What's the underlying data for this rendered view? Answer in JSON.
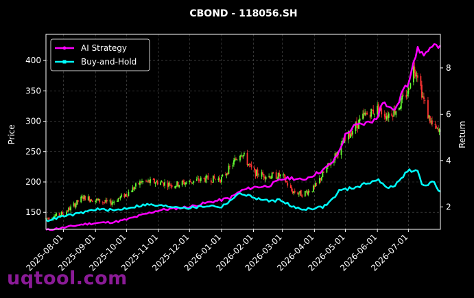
{
  "chart_data": {
    "type": "line",
    "title": "CBOND - 118056.SH",
    "ylabel_left": "Price",
    "ylabel_right": "Return",
    "grid": true,
    "legend_placement": "top-left",
    "x_ticks": [
      "2025-08-01",
      "2025-09-01",
      "2025-10-01",
      "2025-11-01",
      "2025-12-01",
      "2026-01-01",
      "2026-02-01",
      "2026-03-01",
      "2026-04-01",
      "2026-05-01",
      "2026-06-01",
      "2026-07-01"
    ],
    "x_range": [
      "2025-07-15",
      "2026-08-01"
    ],
    "y_left_ticks": [
      150,
      200,
      250,
      300,
      350,
      400
    ],
    "y_left_range": [
      122,
      443
    ],
    "y_right_ticks": [
      2,
      4,
      6,
      8
    ],
    "y_right_range": [
      1.03,
      9.45
    ],
    "colors": {
      "background": "#000000",
      "up_candle": "#66ff33",
      "down_candle": "#ff3333",
      "ai": "#ff00ff",
      "bh": "#00ffff"
    },
    "series": [
      {
        "name": "AI Strategy",
        "axis": "right",
        "color": "#ff00ff",
        "points": [
          [
            "2025-07-15",
            1.0
          ],
          [
            "2025-08-01",
            1.1
          ],
          [
            "2025-08-20",
            1.25
          ],
          [
            "2025-09-01",
            1.3
          ],
          [
            "2025-09-20",
            1.35
          ],
          [
            "2025-10-01",
            1.45
          ],
          [
            "2025-10-20",
            1.7
          ],
          [
            "2025-11-01",
            1.85
          ],
          [
            "2025-11-20",
            1.95
          ],
          [
            "2025-12-01",
            2.0
          ],
          [
            "2025-12-20",
            2.2
          ],
          [
            "2026-01-01",
            2.3
          ],
          [
            "2026-01-10",
            2.4
          ],
          [
            "2026-01-20",
            2.7
          ],
          [
            "2026-02-01",
            2.85
          ],
          [
            "2026-02-15",
            2.9
          ],
          [
            "2026-03-01",
            3.2
          ],
          [
            "2026-03-10",
            3.25
          ],
          [
            "2026-03-20",
            3.15
          ],
          [
            "2026-04-01",
            3.4
          ],
          [
            "2026-04-10",
            3.6
          ],
          [
            "2026-04-20",
            4.0
          ],
          [
            "2026-04-25",
            4.4
          ],
          [
            "2026-05-01",
            5.1
          ],
          [
            "2026-05-10",
            5.5
          ],
          [
            "2026-05-20",
            5.6
          ],
          [
            "2026-06-01",
            5.8
          ],
          [
            "2026-06-05",
            6.6
          ],
          [
            "2026-06-15",
            6.2
          ],
          [
            "2026-06-20",
            6.3
          ],
          [
            "2026-06-25",
            7.0
          ],
          [
            "2026-07-01",
            7.3
          ],
          [
            "2026-07-05",
            8.2
          ],
          [
            "2026-07-10",
            8.8
          ],
          [
            "2026-07-15",
            8.6
          ],
          [
            "2026-07-20",
            8.7
          ],
          [
            "2026-07-25",
            8.9
          ],
          [
            "2026-08-01",
            9.0
          ]
        ]
      },
      {
        "name": "Buy-and-Hold",
        "axis": "right",
        "color": "#00ffff",
        "points": [
          [
            "2025-07-15",
            1.4
          ],
          [
            "2025-08-01",
            1.6
          ],
          [
            "2025-08-15",
            1.7
          ],
          [
            "2025-09-01",
            1.9
          ],
          [
            "2025-09-20",
            1.85
          ],
          [
            "2025-10-01",
            1.95
          ],
          [
            "2025-10-20",
            2.1
          ],
          [
            "2025-11-01",
            2.05
          ],
          [
            "2025-11-20",
            2.0
          ],
          [
            "2025-12-01",
            1.95
          ],
          [
            "2025-12-20",
            2.05
          ],
          [
            "2026-01-01",
            2.0
          ],
          [
            "2026-01-10",
            2.3
          ],
          [
            "2026-01-20",
            2.6
          ],
          [
            "2026-02-01",
            2.4
          ],
          [
            "2026-02-15",
            2.25
          ],
          [
            "2026-03-01",
            2.3
          ],
          [
            "2026-03-10",
            2.0
          ],
          [
            "2026-03-20",
            1.9
          ],
          [
            "2026-04-01",
            1.95
          ],
          [
            "2026-04-10",
            2.0
          ],
          [
            "2026-04-20",
            2.4
          ],
          [
            "2026-04-25",
            2.7
          ],
          [
            "2026-05-01",
            2.75
          ],
          [
            "2026-05-15",
            2.9
          ],
          [
            "2026-06-01",
            3.2
          ],
          [
            "2026-06-10",
            2.8
          ],
          [
            "2026-06-20",
            3.0
          ],
          [
            "2026-07-01",
            3.6
          ],
          [
            "2026-07-10",
            3.5
          ],
          [
            "2026-07-15",
            2.9
          ],
          [
            "2026-07-25",
            3.1
          ],
          [
            "2026-08-01",
            2.6
          ]
        ]
      },
      {
        "name": "",
        "axis": "left",
        "type": "candlestick",
        "points": [
          [
            "2025-07-15",
            140
          ],
          [
            "2025-08-01",
            148
          ],
          [
            "2025-08-10",
            160
          ],
          [
            "2025-08-20",
            175
          ],
          [
            "2025-09-01",
            170
          ],
          [
            "2025-09-15",
            165
          ],
          [
            "2025-10-01",
            180
          ],
          [
            "2025-10-15",
            200
          ],
          [
            "2025-11-01",
            200
          ],
          [
            "2025-11-15",
            195
          ],
          [
            "2025-12-01",
            200
          ],
          [
            "2025-12-15",
            205
          ],
          [
            "2026-01-01",
            205
          ],
          [
            "2026-01-10",
            225
          ],
          [
            "2026-01-20",
            250
          ],
          [
            "2026-02-01",
            215
          ],
          [
            "2026-02-15",
            210
          ],
          [
            "2026-03-01",
            210
          ],
          [
            "2026-03-10",
            185
          ],
          [
            "2026-03-20",
            180
          ],
          [
            "2026-04-01",
            190
          ],
          [
            "2026-04-10",
            215
          ],
          [
            "2026-04-20",
            240
          ],
          [
            "2026-05-01",
            270
          ],
          [
            "2026-05-10",
            290
          ],
          [
            "2026-05-20",
            310
          ],
          [
            "2026-06-01",
            320
          ],
          [
            "2026-06-10",
            310
          ],
          [
            "2026-06-20",
            320
          ],
          [
            "2026-07-01",
            350
          ],
          [
            "2026-07-05",
            390
          ],
          [
            "2026-07-10",
            380
          ],
          [
            "2026-07-15",
            340
          ],
          [
            "2026-07-20",
            310
          ],
          [
            "2026-07-25",
            290
          ],
          [
            "2026-08-01",
            280
          ]
        ]
      }
    ]
  },
  "watermark": "uqtool.com"
}
